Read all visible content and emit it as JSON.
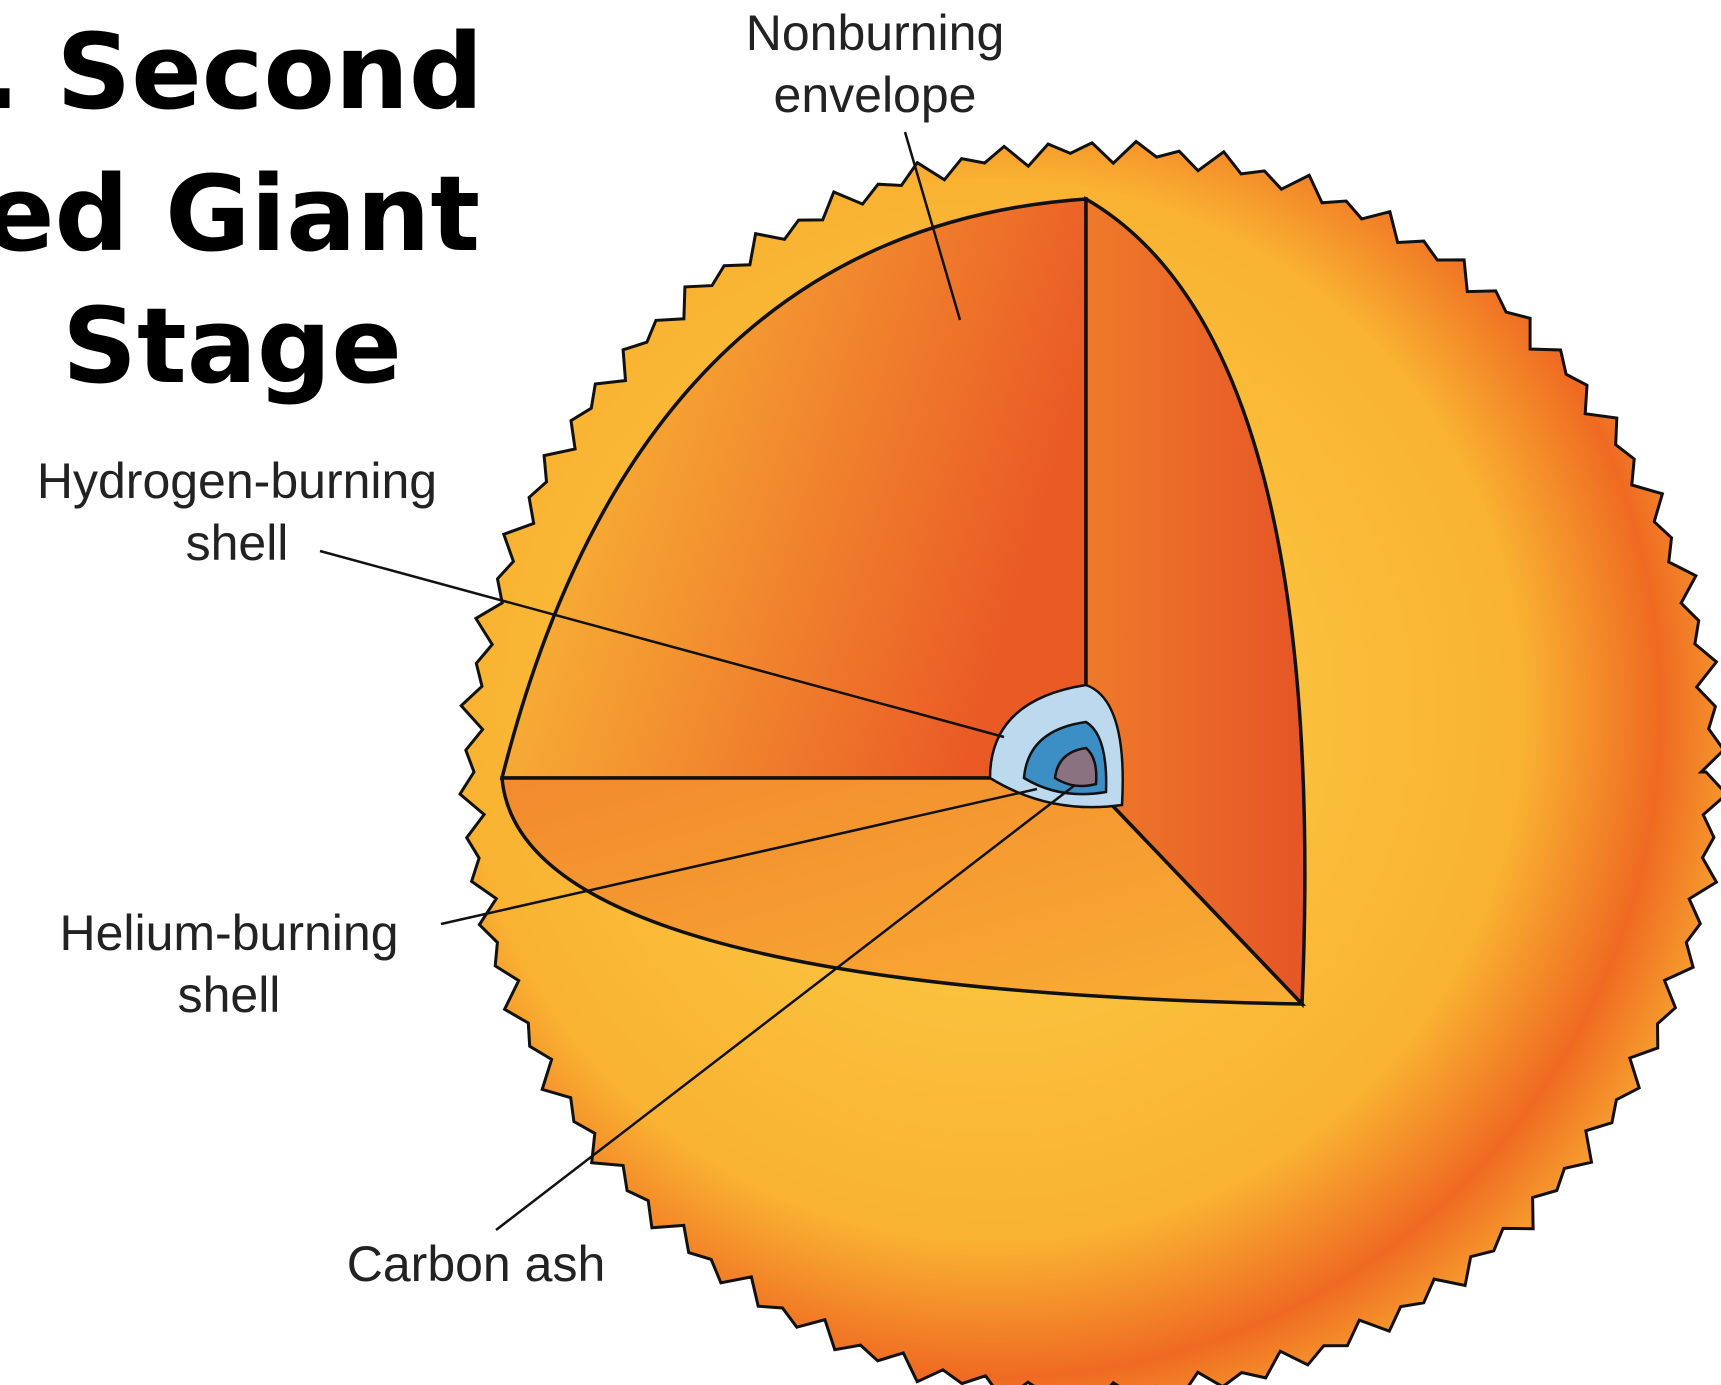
{
  "title": {
    "lines": [
      ". Second",
      "ed Giant",
      "Stage"
    ]
  },
  "labels": [
    {
      "lines": [
        "Nonburning",
        "envelope"
      ]
    },
    {
      "lines": [
        "Hydrogen-burning",
        "shell"
      ]
    },
    {
      "lines": [
        "Helium-burning",
        "shell"
      ]
    },
    {
      "lines": [
        "Carbon ash"
      ]
    }
  ]
}
